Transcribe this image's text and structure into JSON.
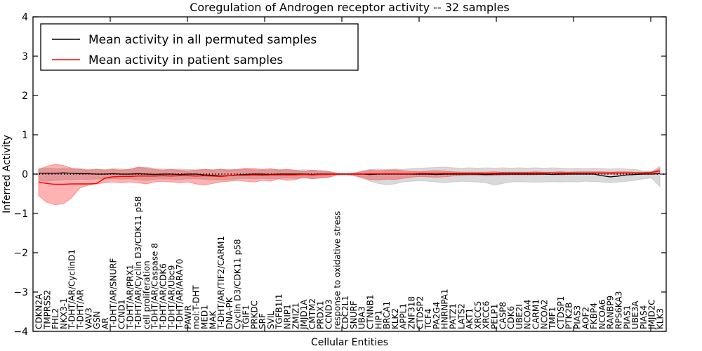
{
  "title": "Coregulation of Androgen receptor activity -- 32 samples",
  "axes": {
    "ylabel": "Inferred Activity",
    "xlabel": "Cellular Entities",
    "ylim": [
      -4,
      4
    ],
    "yticks": [
      -4,
      -3,
      -2,
      -1,
      0,
      1,
      2,
      3,
      4
    ]
  },
  "legend": [
    {
      "label": "Mean activity in all permuted samples",
      "color": "#000000"
    },
    {
      "label": "Mean activity in patient samples",
      "color": "#ff0000"
    }
  ],
  "chart_data": {
    "type": "line",
    "title": "Coregulation of Androgen receptor activity -- 32 samples",
    "xlabel": "Cellular Entities",
    "ylabel": "Inferred Activity",
    "ylim": [
      -4,
      4
    ],
    "grid": false,
    "legend_position": "upper left",
    "zero_line": {
      "style": "dotted",
      "color": "#000000",
      "y": 0
    },
    "band_colors": {
      "permuted": "#aaaaaa",
      "patient": "#ff0000"
    },
    "categories": [
      "CDKN2A",
      "TMPRSS2",
      "FHL2",
      "NKX3-1",
      "T-DHT/AR/CyclinD1",
      "T-DHT/AR",
      "VAV3",
      "GSN",
      "AR",
      "T-DHT/AR/SNURF",
      "CCND1",
      "T-DHT/AR/PRX1",
      "T-DHT/AR/Cyclin D3/CDK11 p58",
      "cell proliferation",
      "T-DHT/AR/Caspase 8",
      "T-DHT/AR/CDK6",
      "T-DHT/AR/Ubc9",
      "T-DHT/AR/ARA70",
      "PAWR",
      "mol:T-DHT",
      "MED1",
      "MAK",
      "T-DHT/AR/TIF2/CARM1",
      "DNA-PK",
      "Cyclin D3/CDK11 p58",
      "TGIF1",
      "PRKDC",
      "SRF",
      "SVIL",
      "TGFB1I1",
      "NRIP1",
      "ZMIZ1",
      "JMJD1A",
      "CMTM2",
      "PRDX1",
      "CCND3",
      "response to oxidative stress",
      "CDC2L1",
      "SNURF",
      "UBA3",
      "CTNNB1",
      "HIP1",
      "BRCA1",
      "KLK2",
      "APPL1",
      "ZNF318",
      "CTDSP2",
      "TCF4",
      "PA2G4",
      "HNRNPA1",
      "PATZ1",
      "LATS2",
      "AKT1",
      "XRCC5",
      "XRCC6",
      "PELP1",
      "CASP8",
      "CDK6",
      "UBE2I",
      "NCOA4",
      "CARM1",
      "NCOA2",
      "TMF1",
      "CTDSP1",
      "PTK2B",
      "PIAS3",
      "AOF2",
      "FKBP4",
      "NCOA6",
      "RANBP9",
      "RPS6KA3",
      "PIAS1",
      "UBE3A",
      "PIAS4",
      "JMJD2C",
      "KLK3"
    ],
    "series": [
      {
        "name": "Mean activity in all permuted samples",
        "color": "#000000",
        "values": [
          0.02,
          0.02,
          0.02,
          0.03,
          0.02,
          0.01,
          0.01,
          0.0,
          0.0,
          0.01,
          0.0,
          0.0,
          0.01,
          0.0,
          -0.01,
          0.0,
          0.0,
          -0.01,
          0.0,
          0.0,
          -0.02,
          -0.03,
          -0.05,
          -0.04,
          -0.02,
          -0.01,
          0.0,
          0.0,
          -0.01,
          0.0,
          0.0,
          0.0,
          0.0,
          -0.01,
          0.0,
          0.0,
          0.0,
          0.0,
          0.0,
          0.0,
          -0.01,
          0.0,
          0.0,
          0.0,
          0.0,
          0.0,
          0.0,
          0.0,
          -0.01,
          0.0,
          0.0,
          0.0,
          0.0,
          0.0,
          -0.01,
          0.0,
          0.0,
          0.0,
          0.0,
          0.0,
          0.0,
          0.0,
          -0.01,
          0.0,
          0.0,
          0.0,
          0.0,
          0.0,
          -0.04,
          -0.07,
          -0.05,
          -0.02,
          -0.01,
          0.0,
          0.0,
          0.01
        ],
        "band_upper": [
          0.14,
          0.15,
          0.14,
          0.15,
          0.13,
          0.14,
          0.12,
          0.13,
          0.12,
          0.14,
          0.13,
          0.12,
          0.16,
          0.18,
          0.14,
          0.13,
          0.12,
          0.13,
          0.12,
          0.11,
          0.12,
          0.12,
          0.13,
          0.12,
          0.11,
          0.12,
          0.11,
          0.1,
          0.11,
          0.12,
          0.11,
          0.1,
          0.11,
          0.1,
          0.09,
          0.08,
          0.03,
          0.02,
          0.03,
          0.08,
          0.12,
          0.13,
          0.12,
          0.13,
          0.12,
          0.14,
          0.15,
          0.16,
          0.17,
          0.18,
          0.16,
          0.15,
          0.16,
          0.15,
          0.16,
          0.15,
          0.16,
          0.15,
          0.16,
          0.15,
          0.16,
          0.15,
          0.16,
          0.15,
          0.14,
          0.15,
          0.14,
          0.15,
          0.14,
          0.13,
          0.14,
          0.13,
          0.12,
          0.08,
          0.06,
          0.2
        ],
        "band_lower": [
          -0.16,
          -0.18,
          -0.16,
          -0.15,
          -0.14,
          -0.13,
          -0.14,
          -0.12,
          -0.13,
          -0.12,
          -0.13,
          -0.12,
          -0.14,
          -0.16,
          -0.13,
          -0.12,
          -0.13,
          -0.14,
          -0.12,
          -0.12,
          -0.13,
          -0.14,
          -0.15,
          -0.14,
          -0.12,
          -0.11,
          -0.12,
          -0.11,
          -0.12,
          -0.11,
          -0.1,
          -0.11,
          -0.1,
          -0.11,
          -0.1,
          -0.09,
          -0.03,
          -0.02,
          -0.04,
          -0.1,
          -0.18,
          -0.24,
          -0.27,
          -0.25,
          -0.2,
          -0.18,
          -0.17,
          -0.18,
          -0.2,
          -0.22,
          -0.2,
          -0.18,
          -0.19,
          -0.2,
          -0.22,
          -0.28,
          -0.24,
          -0.2,
          -0.19,
          -0.2,
          -0.21,
          -0.2,
          -0.19,
          -0.2,
          -0.19,
          -0.2,
          -0.18,
          -0.19,
          -0.2,
          -0.22,
          -0.2,
          -0.18,
          -0.16,
          -0.12,
          -0.1,
          -0.32
        ]
      },
      {
        "name": "Mean activity in patient samples",
        "color": "#ff0000",
        "values": [
          -0.2,
          -0.24,
          -0.26,
          -0.26,
          -0.25,
          -0.25,
          -0.25,
          -0.24,
          -0.1,
          -0.07,
          -0.06,
          -0.06,
          -0.05,
          -0.05,
          -0.05,
          -0.04,
          -0.05,
          -0.04,
          -0.04,
          -0.05,
          -0.04,
          -0.05,
          -0.06,
          -0.04,
          -0.03,
          -0.03,
          -0.02,
          -0.03,
          -0.02,
          -0.02,
          -0.02,
          -0.02,
          -0.01,
          -0.02,
          -0.01,
          -0.01,
          0.0,
          0.0,
          0.0,
          0.0,
          0.01,
          0.01,
          0.01,
          0.01,
          0.01,
          0.01,
          0.02,
          0.02,
          0.02,
          0.02,
          0.02,
          0.02,
          0.02,
          0.02,
          0.02,
          0.02,
          0.03,
          0.03,
          0.03,
          0.03,
          0.03,
          0.03,
          0.03,
          0.03,
          0.03,
          0.03,
          0.03,
          0.03,
          0.03,
          0.03,
          0.03,
          0.03,
          0.03,
          0.03,
          0.04,
          0.08
        ],
        "band_upper": [
          0.12,
          0.2,
          0.25,
          0.22,
          0.15,
          0.12,
          0.1,
          0.12,
          0.1,
          0.12,
          0.1,
          0.12,
          0.18,
          0.15,
          0.12,
          0.1,
          0.12,
          0.1,
          0.08,
          0.1,
          0.12,
          0.1,
          0.12,
          0.1,
          0.12,
          0.15,
          0.14,
          0.12,
          0.14,
          0.1,
          0.12,
          0.1,
          0.06,
          0.1,
          0.08,
          0.06,
          0.02,
          0.01,
          0.02,
          0.06,
          0.1,
          0.09,
          0.1,
          0.11,
          0.09,
          0.07,
          0.06,
          0.08,
          0.09,
          0.08,
          0.06,
          0.05,
          0.05,
          0.05,
          0.05,
          0.06,
          0.05,
          0.05,
          0.05,
          0.05,
          0.06,
          0.05,
          0.05,
          0.06,
          0.05,
          0.06,
          0.06,
          0.06,
          0.06,
          0.05,
          0.06,
          0.06,
          0.05,
          0.05,
          0.06,
          0.14
        ],
        "band_lower": [
          -0.55,
          -0.72,
          -0.78,
          -0.75,
          -0.6,
          -0.35,
          -0.28,
          -0.25,
          -0.22,
          -0.2,
          -0.22,
          -0.2,
          -0.22,
          -0.25,
          -0.2,
          -0.18,
          -0.2,
          -0.22,
          -0.2,
          -0.25,
          -0.28,
          -0.24,
          -0.2,
          -0.18,
          -0.16,
          -0.18,
          -0.2,
          -0.16,
          -0.18,
          -0.12,
          -0.16,
          -0.14,
          -0.08,
          -0.12,
          -0.1,
          -0.08,
          -0.02,
          -0.01,
          -0.03,
          -0.08,
          -0.14,
          -0.15,
          -0.13,
          -0.14,
          -0.11,
          -0.08,
          -0.06,
          -0.07,
          -0.08,
          -0.07,
          -0.05,
          -0.04,
          -0.03,
          -0.03,
          -0.04,
          -0.04,
          -0.03,
          -0.02,
          -0.02,
          -0.02,
          -0.02,
          -0.01,
          -0.01,
          -0.02,
          -0.01,
          0.0,
          0.0,
          0.0,
          0.0,
          0.0,
          0.0,
          0.01,
          0.01,
          0.01,
          0.02,
          0.02
        ]
      }
    ]
  }
}
